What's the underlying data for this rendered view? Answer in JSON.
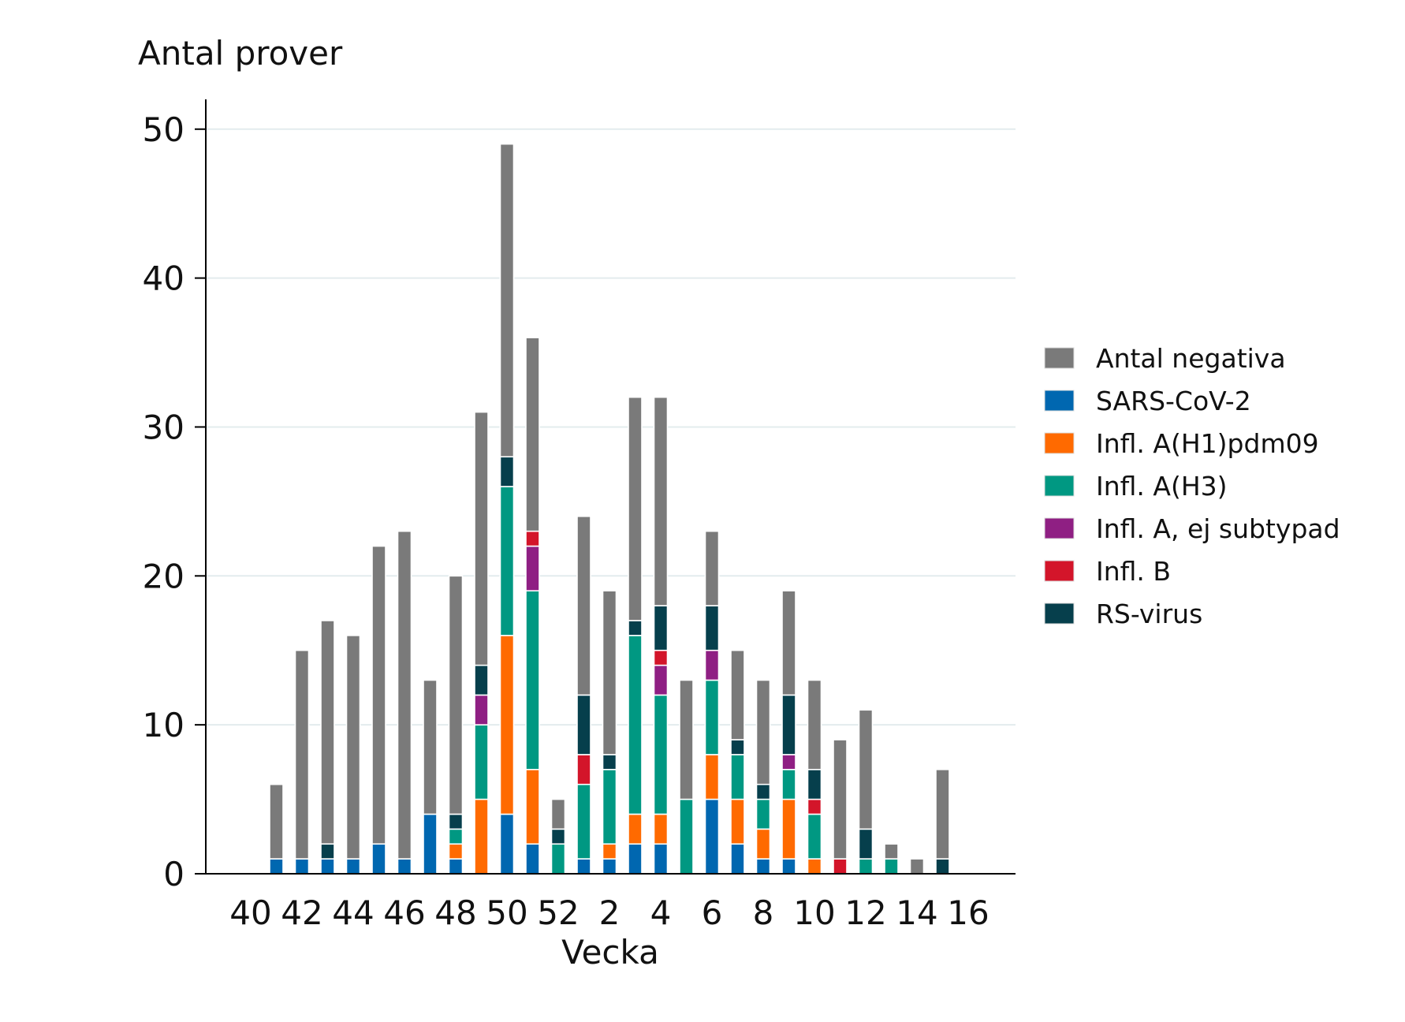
{
  "chart_data": {
    "type": "bar",
    "stacked": true,
    "ylabel": "Antal prover",
    "xlabel": "Vecka",
    "ylim": [
      0,
      52
    ],
    "yticks": [
      0,
      10,
      20,
      30,
      40,
      50
    ],
    "grid": true,
    "legend_position": "right",
    "categories": [
      "40",
      "41",
      "42",
      "43",
      "44",
      "45",
      "46",
      "47",
      "48",
      "49",
      "50",
      "51",
      "52",
      "1",
      "2",
      "3",
      "4",
      "5",
      "6",
      "7",
      "8",
      "9",
      "10",
      "11",
      "12",
      "13",
      "14",
      "15",
      "16"
    ],
    "xtick_labels": [
      "40",
      "42",
      "44",
      "46",
      "48",
      "50",
      "52",
      "2",
      "4",
      "6",
      "8",
      "10",
      "12",
      "14",
      "16"
    ],
    "series": [
      {
        "name": "SARS-CoV-2",
        "color": "#0067b0",
        "values": [
          0,
          1,
          1,
          1,
          1,
          2,
          1,
          4,
          1,
          0,
          4,
          2,
          0,
          1,
          1,
          2,
          2,
          0,
          5,
          2,
          1,
          1,
          0,
          0,
          0,
          0,
          0,
          0,
          0
        ]
      },
      {
        "name": "Infl. A(H1)pdm09",
        "color": "#ff6a00",
        "values": [
          0,
          0,
          0,
          0,
          0,
          0,
          0,
          0,
          1,
          5,
          12,
          5,
          0,
          0,
          1,
          2,
          2,
          0,
          3,
          3,
          2,
          4,
          1,
          0,
          0,
          0,
          0,
          0,
          0
        ]
      },
      {
        "name": "Infl. A(H3)",
        "color": "#009882",
        "values": [
          0,
          0,
          0,
          0,
          0,
          0,
          0,
          0,
          1,
          5,
          10,
          12,
          2,
          5,
          5,
          12,
          8,
          5,
          5,
          3,
          2,
          2,
          3,
          0,
          1,
          1,
          0,
          0,
          0
        ]
      },
      {
        "name": "Infl. A, ej subtypad",
        "color": "#8f1f83",
        "values": [
          0,
          0,
          0,
          0,
          0,
          0,
          0,
          0,
          0,
          2,
          0,
          3,
          0,
          0,
          0,
          0,
          2,
          0,
          2,
          0,
          0,
          1,
          0,
          0,
          0,
          0,
          0,
          0,
          0
        ]
      },
      {
        "name": "Infl. B",
        "color": "#d3152a",
        "values": [
          0,
          0,
          0,
          0,
          0,
          0,
          0,
          0,
          0,
          0,
          0,
          1,
          0,
          2,
          0,
          0,
          1,
          0,
          0,
          0,
          0,
          0,
          1,
          1,
          0,
          0,
          0,
          0,
          0
        ]
      },
      {
        "name": "RS-virus",
        "color": "#063f4c",
        "values": [
          0,
          0,
          0,
          1,
          0,
          0,
          0,
          0,
          1,
          2,
          2,
          0,
          1,
          4,
          1,
          1,
          3,
          0,
          3,
          1,
          1,
          4,
          2,
          0,
          2,
          0,
          0,
          1,
          0
        ]
      },
      {
        "name": "Antal negativa",
        "color": "#7a7a7a",
        "values": [
          0,
          5,
          14,
          15,
          15,
          20,
          22,
          9,
          16,
          17,
          21,
          13,
          2,
          12,
          11,
          15,
          14,
          8,
          5,
          6,
          7,
          7,
          6,
          8,
          8,
          1,
          1,
          6,
          0
        ]
      }
    ],
    "legend_order": [
      "Antal negativa",
      "SARS-CoV-2",
      "Infl. A(H1)pdm09",
      "Infl. A(H3)",
      "Infl. A, ej subtypad",
      "Infl. B",
      "RS-virus"
    ]
  }
}
